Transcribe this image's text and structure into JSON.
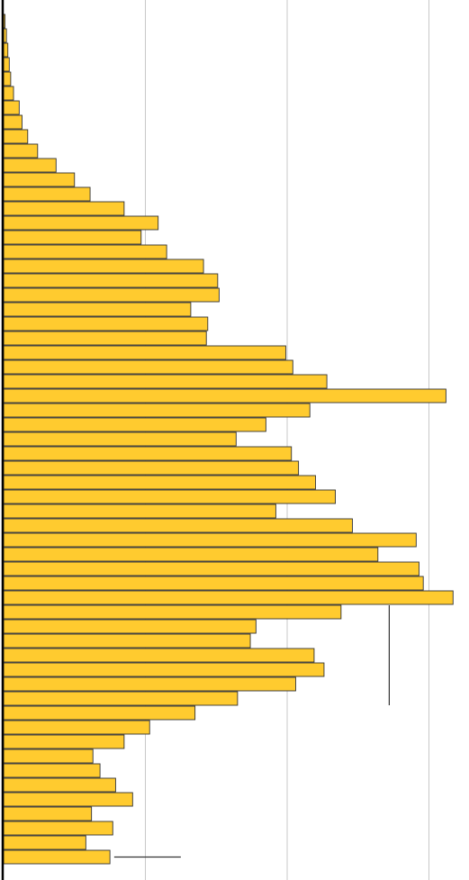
{
  "chart_data": {
    "type": "bar",
    "orientation": "horizontal",
    "title": "",
    "xlabel": "",
    "ylabel": "",
    "grid": true,
    "xlim": [
      0,
      330
    ],
    "gridlines": [
      100,
      200,
      300
    ],
    "colors": {
      "bar_fill": "#FFCB2F",
      "bar_stroke": "#333333",
      "axis": "#000000",
      "grid": "#bbbbbb",
      "annotation": "#333333"
    },
    "values": [
      1,
      2,
      3,
      4,
      5,
      7,
      11,
      13,
      17,
      24,
      37,
      50,
      61,
      85,
      109,
      97,
      115,
      141,
      151,
      152,
      132,
      144,
      143,
      199,
      204,
      228,
      312,
      216,
      185,
      164,
      203,
      208,
      220,
      234,
      192,
      246,
      291,
      264,
      293,
      296,
      317,
      238,
      178,
      174,
      219,
      226,
      206,
      165,
      135,
      103,
      85,
      63,
      68,
      79,
      91,
      62,
      77,
      58,
      75
    ],
    "annotations": [
      {
        "type": "vline",
        "x": 272,
        "from_bar": 41,
        "to_bar": 47
      },
      {
        "type": "hline",
        "bar": 58,
        "from_x": 78,
        "to_x": 125
      }
    ]
  }
}
